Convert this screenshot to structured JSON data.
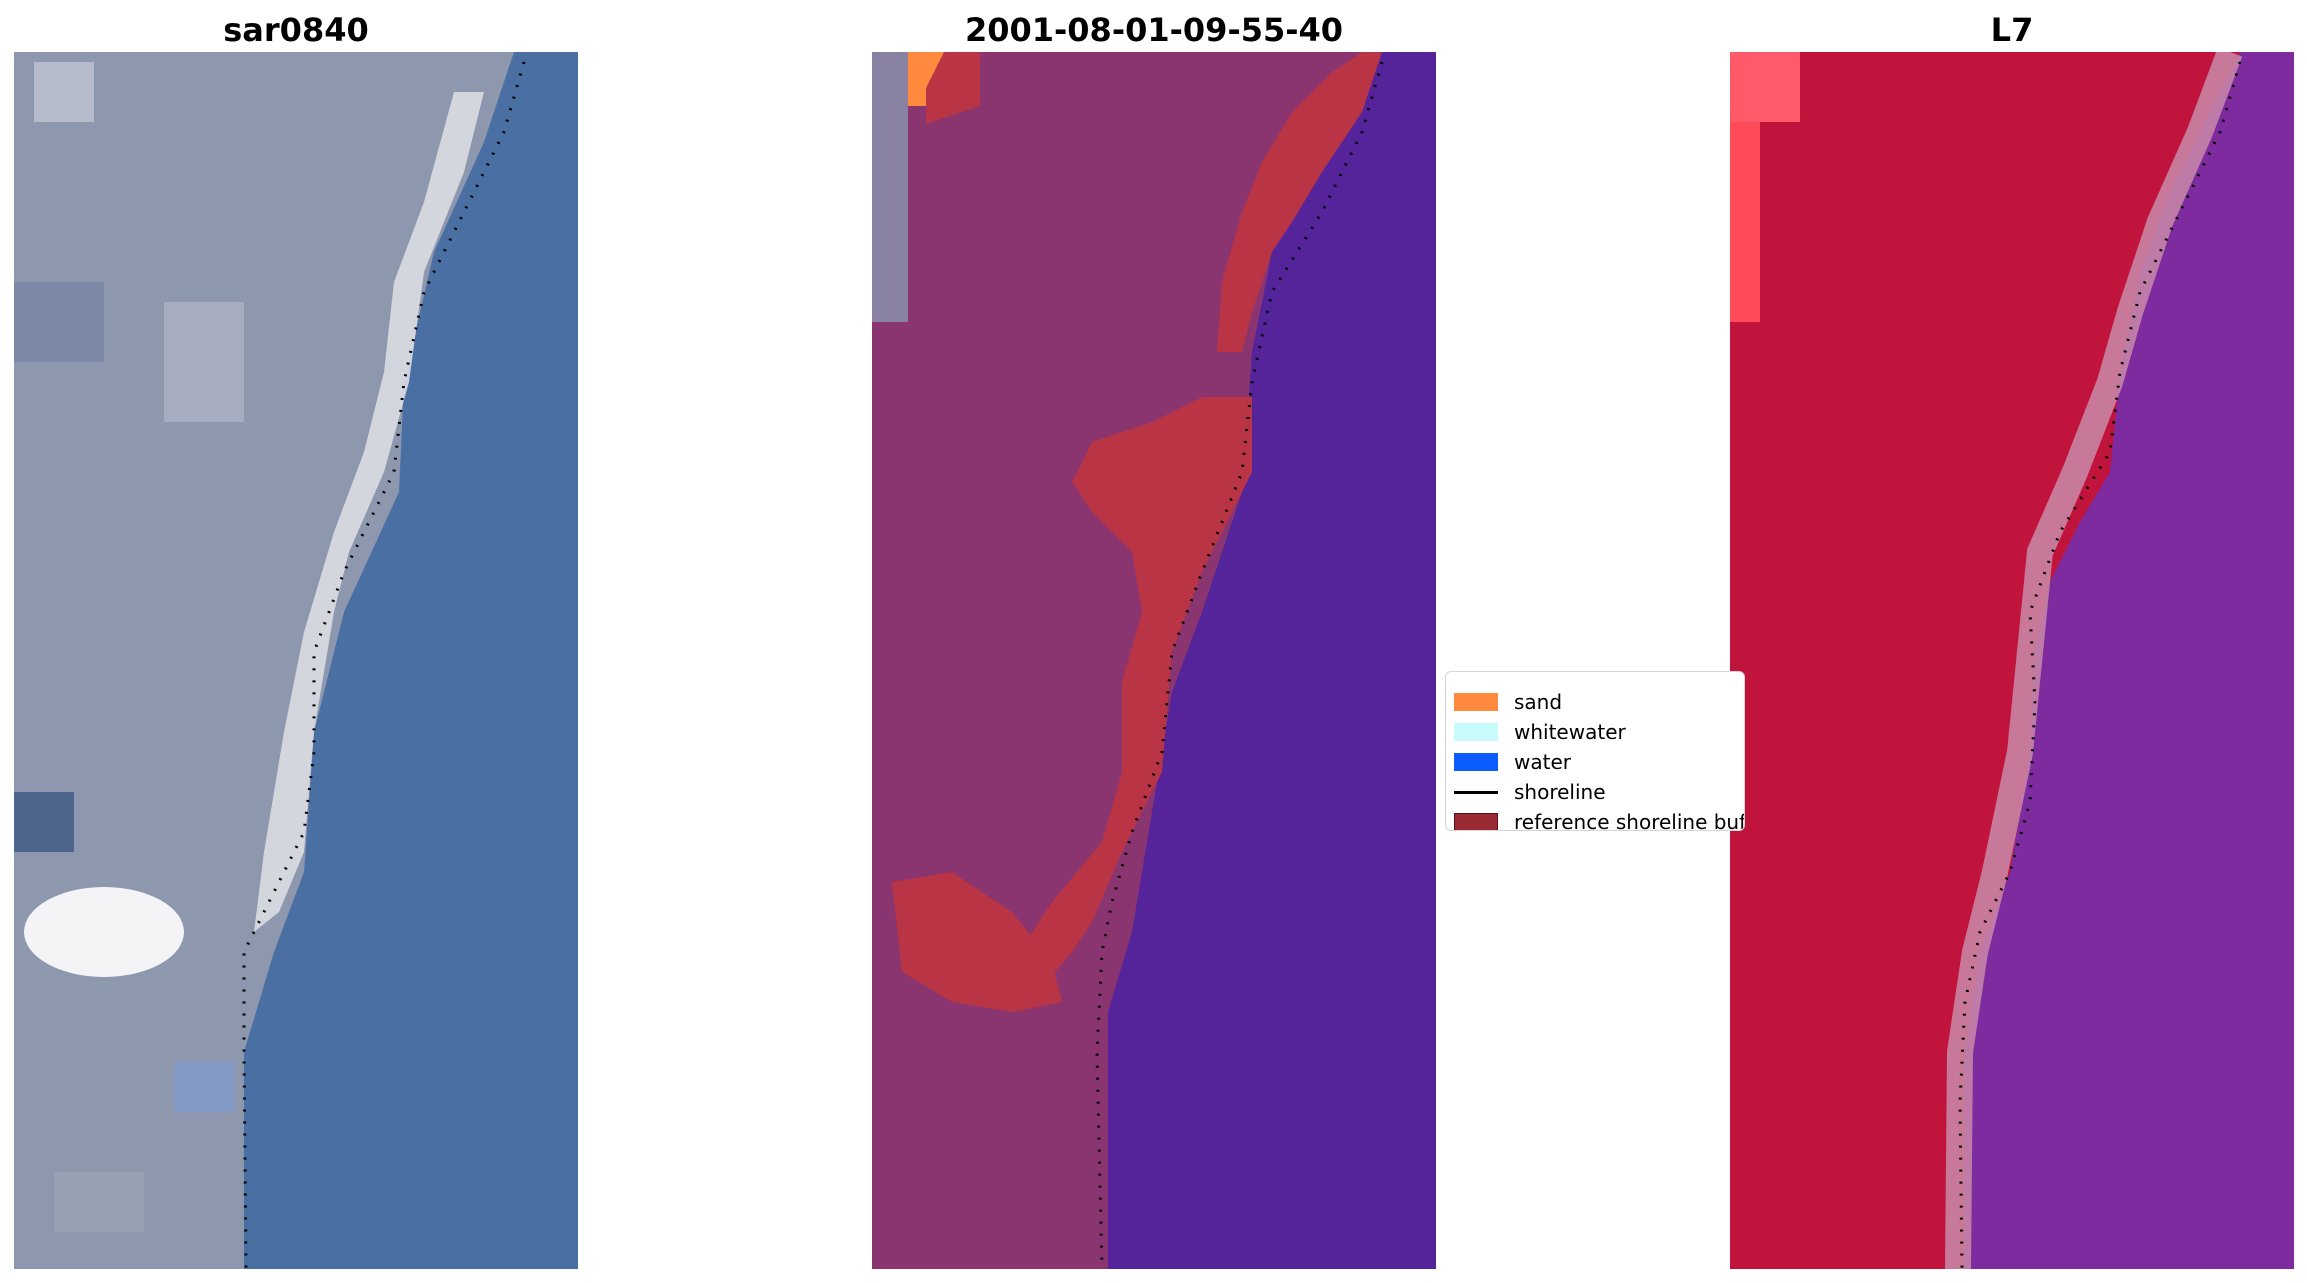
{
  "panels": [
    {
      "title": "sar0840"
    },
    {
      "title": "2001-08-01-09-55-40"
    },
    {
      "title": "L7"
    }
  ],
  "legend": {
    "items": [
      {
        "label": "sand",
        "color": "#ff8a3d",
        "kind": "patch"
      },
      {
        "label": "whitewater",
        "color": "#c8fbfb",
        "kind": "patch"
      },
      {
        "label": "water",
        "color": "#0a5cff",
        "kind": "patch"
      },
      {
        "label": "shoreline",
        "color": "#000000",
        "kind": "line"
      },
      {
        "label": "reference shoreline buffer",
        "color": "#9c2a35",
        "kind": "patch"
      }
    ]
  },
  "colors": {
    "rgb_water": "#4a6fa3",
    "rgb_land": "#8d97ae",
    "rgb_beach": "#dcdde3",
    "classified_land": "#8a3470",
    "classified_water": "#55239a",
    "classified_buffer": "#b93445",
    "falsecolor_land": "#c0143c",
    "falsecolor_water": "#7d2b9e",
    "falsecolor_edge": "#c98aa8"
  }
}
